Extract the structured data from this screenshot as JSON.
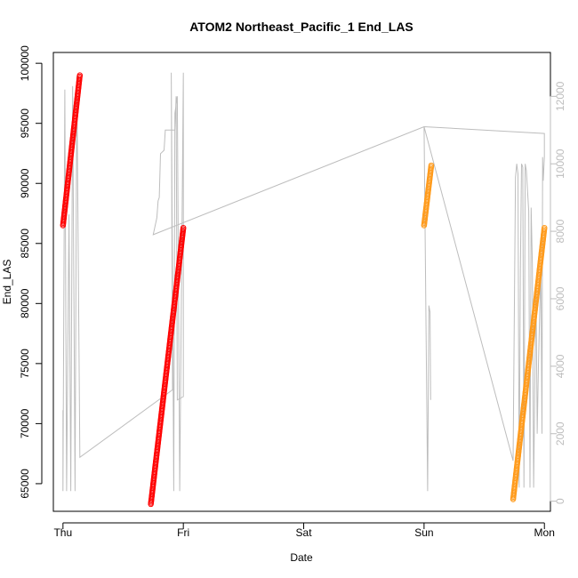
{
  "chart_data": {
    "type": "scatter",
    "title": "ATOM2 Northeast_Pacific_1 End_LAS",
    "xlabel": "Date",
    "ylabel": "End_LAS",
    "x_ticks": [
      "Thu",
      "Fri",
      "Sat",
      "Sun",
      "Mon"
    ],
    "xlim": [
      -0.08,
      4.05
    ],
    "ylim": [
      62700,
      100900
    ],
    "y_ticks": [
      65000,
      70000,
      75000,
      80000,
      85000,
      90000,
      95000,
      100000
    ],
    "y2lim": [
      -300,
      13300
    ],
    "y2_ticks": [
      0,
      2000,
      4000,
      6000,
      8000,
      10000,
      12000
    ],
    "grid": false,
    "colors": {
      "red_series": "#ff0000",
      "orange_series": "#ff9a1a",
      "grey_line": "#bdbdbd",
      "axis": "#000000"
    },
    "series": [
      {
        "marker": "circle",
        "color": "#ff0000",
        "segments": [
          {
            "x_start": 0.0,
            "x_end": 0.14,
            "y_start": 86500,
            "y_end": 99000
          },
          {
            "x_start": 0.73,
            "x_end": 1.0,
            "y_start": 63300,
            "y_end": 86300
          }
        ]
      },
      {
        "marker": "circle",
        "color": "#ff9a1a",
        "segments": [
          {
            "x_start": 3.0,
            "x_end": 3.06,
            "y_start": 86500,
            "y_end": 91500
          },
          {
            "x_start": 3.74,
            "x_end": 4.0,
            "y_start": 63700,
            "y_end": 86300
          }
        ]
      }
    ],
    "secondary_series": {
      "axis": "right",
      "color": "#bdbdbd",
      "style": "line",
      "points": [
        [
          0.0,
          2700
        ],
        [
          0.0,
          300
        ],
        [
          0.003,
          2700
        ],
        [
          0.015,
          12200
        ],
        [
          0.03,
          300
        ],
        [
          0.05,
          8500
        ],
        [
          0.065,
          300
        ],
        [
          0.08,
          12300
        ],
        [
          0.1,
          300
        ],
        [
          0.115,
          12600
        ],
        [
          0.14,
          1300
        ],
        [
          0.91,
          3300
        ],
        [
          0.9,
          12700
        ],
        [
          0.92,
          300
        ],
        [
          0.93,
          11500
        ],
        [
          0.95,
          12000
        ],
        [
          0.97,
          300
        ],
        [
          1.0,
          12700
        ],
        [
          1.0,
          3100
        ],
        [
          0.95,
          3000
        ],
        [
          0.94,
          12000
        ],
        [
          0.93,
          11000
        ],
        [
          0.85,
          11000
        ],
        [
          0.84,
          10400
        ],
        [
          0.81,
          10300
        ],
        [
          0.8,
          9000
        ],
        [
          0.79,
          8900
        ],
        [
          0.78,
          8400
        ],
        [
          0.75,
          7900
        ],
        [
          3.0,
          11100
        ],
        [
          4.0,
          10900
        ],
        [
          4.0,
          10200
        ],
        [
          3.99,
          9500
        ],
        [
          3.985,
          10200
        ],
        [
          3.98,
          2000
        ],
        [
          3.97,
          7000
        ],
        [
          3.95,
          4000
        ],
        [
          3.94,
          2000
        ],
        [
          3.93,
          6500
        ],
        [
          3.91,
          400
        ],
        [
          3.9,
          7000
        ],
        [
          3.89,
          8700
        ],
        [
          3.88,
          400
        ],
        [
          3.87,
          8600
        ],
        [
          3.85,
          9800
        ],
        [
          3.84,
          10000
        ],
        [
          3.83,
          400
        ],
        [
          3.82,
          9900
        ],
        [
          3.81,
          10000
        ],
        [
          3.8,
          6800
        ],
        [
          3.79,
          400
        ],
        [
          3.78,
          9700
        ],
        [
          3.77,
          10000
        ],
        [
          3.76,
          9600
        ],
        [
          3.74,
          1200
        ],
        [
          3.0,
          11100
        ],
        [
          3.03,
          300
        ],
        [
          3.04,
          5800
        ],
        [
          3.05,
          5600
        ],
        [
          3.055,
          3000
        ]
      ]
    }
  }
}
